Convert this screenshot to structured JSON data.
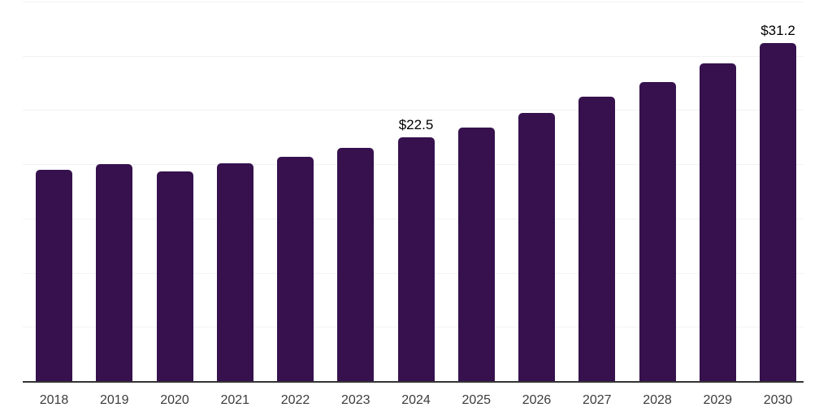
{
  "chart_data": {
    "type": "bar",
    "categories": [
      "2018",
      "2019",
      "2020",
      "2021",
      "2022",
      "2023",
      "2024",
      "2025",
      "2026",
      "2027",
      "2028",
      "2029",
      "2030"
    ],
    "values": [
      19.5,
      20.0,
      19.3,
      20.1,
      20.7,
      21.5,
      22.5,
      23.4,
      24.7,
      26.2,
      27.6,
      29.3,
      31.2
    ],
    "data_labels": {
      "2024": "$22.5",
      "2030": "$31.2"
    },
    "title": "",
    "xlabel": "",
    "ylabel": "",
    "ylim": [
      0,
      35
    ],
    "gridline_values": [
      5,
      10,
      15,
      20,
      25,
      30,
      35
    ],
    "grid": "horizontal",
    "legend": "none",
    "y_axis_labels_visible": false,
    "colors": {
      "bar": "#36114e",
      "grid": "#f2f2f2",
      "axis": "#333333",
      "tick_label": "#3c3c3c",
      "data_label": "#000000",
      "background": "#ffffff"
    }
  }
}
